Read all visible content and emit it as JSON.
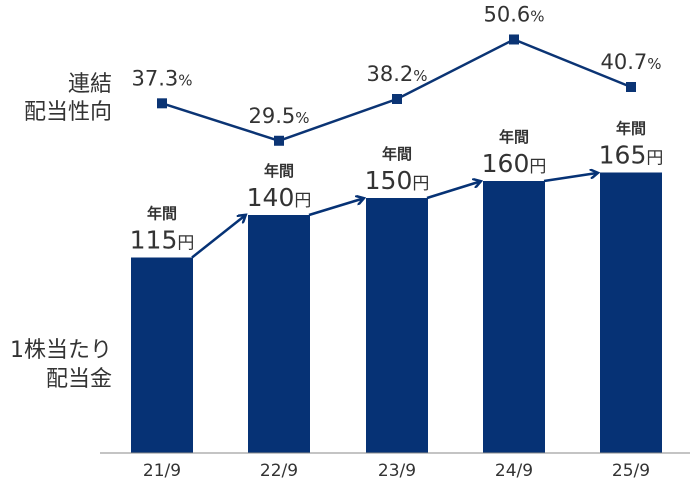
{
  "colors": {
    "bar": "#063275",
    "line": "#0B3474",
    "text": "#333333",
    "axis": "#888888"
  },
  "labels": {
    "payout_ratio_line1": "連結",
    "payout_ratio_line2": "配当性向",
    "dividend_line1": "1株当たり",
    "dividend_line2": "配当金"
  },
  "chart_data": {
    "type": "bar",
    "categories": [
      "21/9",
      "22/9",
      "23/9",
      "24/9",
      "25/9"
    ],
    "annual_label": "年間",
    "value_unit": "円",
    "percent_unit": "%",
    "dividends": [
      115,
      140,
      150,
      160,
      165
    ],
    "dividend_texts": [
      "115",
      "140",
      "150",
      "160",
      "165"
    ],
    "payout_ratio": [
      37.3,
      29.5,
      38.2,
      50.6,
      40.7
    ],
    "payout_texts": [
      "37.3",
      "29.5",
      "38.2",
      "50.6",
      "40.7"
    ],
    "series": [
      {
        "values": [
          115,
          140,
          150,
          160,
          165
        ]
      },
      {
        "values": [
          37.3,
          29.5,
          38.2,
          50.6,
          40.7
        ]
      }
    ],
    "xlabel": "",
    "ylabel": "",
    "grid": false,
    "legend": "none"
  }
}
